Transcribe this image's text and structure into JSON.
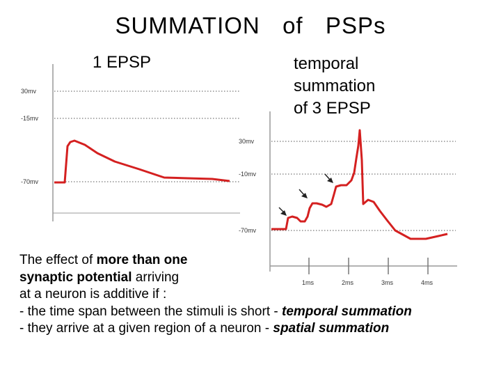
{
  "title": "SUMMATION  of  PSPs",
  "left_panel": {
    "label": "1 EPSP",
    "y_labels": [
      "30mv",
      "-15mv",
      "-70mv"
    ]
  },
  "right_panel": {
    "label_lines": [
      "temporal",
      "summation",
      "of 3 EPSP"
    ],
    "y_labels": [
      "30mv",
      "-10mv",
      "-70mv"
    ],
    "x_labels": [
      "1ms",
      "2ms",
      "3ms",
      "4ms"
    ]
  },
  "body_text": {
    "line1_pre": "The effect of ",
    "line1_bold": "more than one",
    "line2_bold": "synaptic potential",
    "line2_post": " arriving",
    "line3": "at a neuron is additive if :",
    "line4_pre": "- the time span between the stimuli is short - ",
    "line4_em": "temporal summation",
    "line5_pre": "- they arrive at a given region of a neuron - ",
    "line5_em": "spatial summation"
  },
  "colors": {
    "trace": "#d42020",
    "axis": "#999999",
    "gridline": "#555555"
  }
}
